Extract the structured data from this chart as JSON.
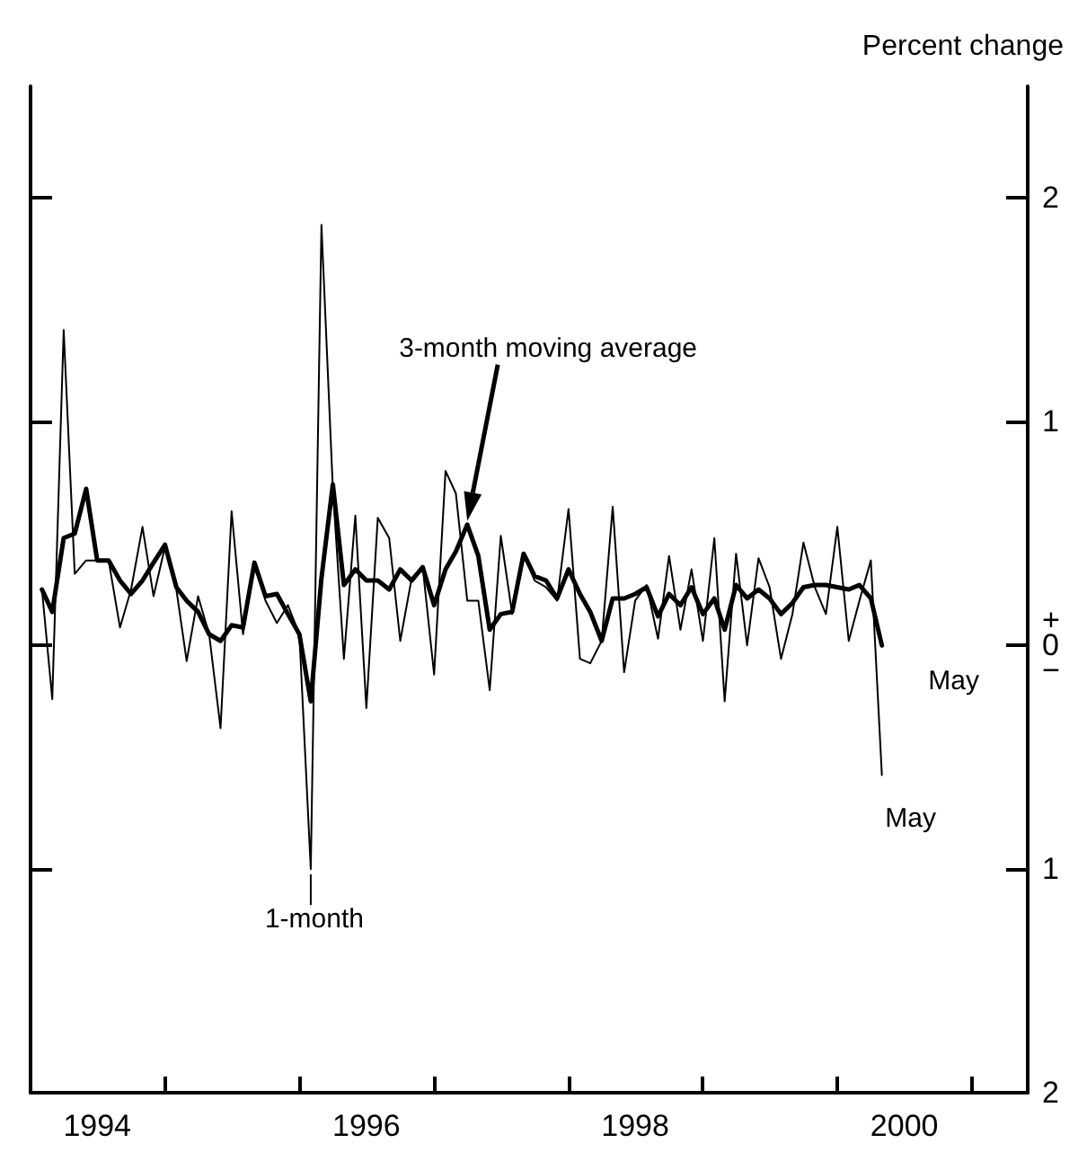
{
  "chart_data": {
    "type": "line",
    "ylabel": "Percent change",
    "x": [
      "1994-02",
      "1994-03",
      "1994-04",
      "1994-05",
      "1994-06",
      "1994-07",
      "1994-08",
      "1994-09",
      "1994-10",
      "1994-11",
      "1994-12",
      "1995-01",
      "1995-02",
      "1995-03",
      "1995-04",
      "1995-05",
      "1995-06",
      "1995-07",
      "1995-08",
      "1995-09",
      "1995-10",
      "1995-11",
      "1995-12",
      "1996-01",
      "1996-02",
      "1996-03",
      "1996-04",
      "1996-05",
      "1996-06",
      "1996-07",
      "1996-08",
      "1996-09",
      "1996-10",
      "1996-11",
      "1996-12",
      "1997-01",
      "1997-02",
      "1997-03",
      "1997-04",
      "1997-05",
      "1997-06",
      "1997-07",
      "1997-08",
      "1997-09",
      "1997-10",
      "1997-11",
      "1997-12",
      "1998-01",
      "1998-02",
      "1998-03",
      "1998-04",
      "1998-05",
      "1998-06",
      "1998-07",
      "1998-08",
      "1998-09",
      "1998-10",
      "1998-11",
      "1998-12",
      "1999-01",
      "1999-02",
      "1999-03",
      "1999-04",
      "1999-05",
      "1999-06",
      "1999-07",
      "1999-08",
      "1999-09",
      "1999-10",
      "1999-11",
      "1999-12",
      "2000-01",
      "2000-02",
      "2000-03",
      "2000-04",
      "2000-05"
    ],
    "series": [
      {
        "color": "#000000",
        "values": [
          0.25,
          -0.24,
          1.41,
          0.32,
          0.38,
          0.38,
          0.38,
          0.08,
          0.25,
          0.53,
          0.22,
          0.44,
          0.25,
          -0.07,
          0.22,
          0.05,
          -0.37,
          0.6,
          0.05,
          0.37,
          0.2,
          0.1,
          0.18,
          0.05,
          -1.0,
          1.88,
          0.7,
          -0.06,
          0.58,
          -0.28,
          0.57,
          0.48,
          0.02,
          0.3,
          0.35,
          -0.13,
          0.78,
          0.68,
          0.2,
          0.2,
          -0.2,
          0.49,
          0.14,
          0.41,
          0.29,
          0.26,
          0.2,
          0.61,
          -0.06,
          -0.08,
          0.02,
          0.62,
          -0.12,
          0.2,
          0.27,
          0.03,
          0.4,
          0.07,
          0.34,
          0.02,
          0.48,
          -0.25,
          0.41,
          0.0,
          0.39,
          0.26,
          -0.06,
          0.14,
          0.46,
          0.26,
          0.14,
          0.53,
          0.02,
          0.2,
          0.38,
          -0.58
        ]
      },
      {
        "color": "#000000",
        "values": [
          0.25,
          0.15,
          0.48,
          0.5,
          0.7,
          0.38,
          0.38,
          0.29,
          0.23,
          0.29,
          0.37,
          0.45,
          0.26,
          0.2,
          0.15,
          0.05,
          0.02,
          0.09,
          0.08,
          0.37,
          0.22,
          0.23,
          0.14,
          0.05,
          -0.25,
          0.3,
          0.72,
          0.27,
          0.34,
          0.29,
          0.29,
          0.25,
          0.34,
          0.29,
          0.35,
          0.18,
          0.34,
          0.42,
          0.54,
          0.4,
          0.07,
          0.14,
          0.15,
          0.41,
          0.31,
          0.29,
          0.21,
          0.34,
          0.23,
          0.15,
          0.02,
          0.21,
          0.21,
          0.23,
          0.26,
          0.13,
          0.23,
          0.18,
          0.26,
          0.14,
          0.21,
          0.07,
          0.27,
          0.21,
          0.25,
          0.21,
          0.14,
          0.19,
          0.26,
          0.27,
          0.27,
          0.26,
          0.25,
          0.27,
          0.21,
          0.0
        ]
      }
    ],
    "xlim": [
      "1994-01",
      "2001-06"
    ],
    "xticks": [
      {
        "value": "1994-07",
        "label": "1994"
      },
      {
        "value": "1995-01",
        "label": null
      },
      {
        "value": "1996-01",
        "label": null
      },
      {
        "value": "1996-07",
        "label": "1996"
      },
      {
        "value": "1997-01",
        "label": null
      },
      {
        "value": "1998-01",
        "label": null
      },
      {
        "value": "1998-07",
        "label": "1998"
      },
      {
        "value": "1999-01",
        "label": null
      },
      {
        "value": "2000-01",
        "label": null
      },
      {
        "value": "2000-07",
        "label": "2000"
      },
      {
        "value": "2001-01",
        "label": null
      }
    ],
    "ylim": [
      -2,
      2.5
    ],
    "yticks": [
      {
        "value": -2,
        "label": "2"
      },
      {
        "value": -1,
        "label": "1"
      },
      {
        "value": 0,
        "label": "+\n0\n−"
      },
      1,
      2
    ],
    "annotations": [
      "3-month moving average",
      {
        "text": "1-month",
        "x": "1996-02",
        "y": -1.0
      },
      {
        "text": "May",
        "x": "2000-05",
        "y": 0.0
      },
      {
        "text": "May",
        "x": "2000-05",
        "y": -0.58
      }
    ],
    "grid": false,
    "marker": "none",
    "line_style": "solid"
  }
}
